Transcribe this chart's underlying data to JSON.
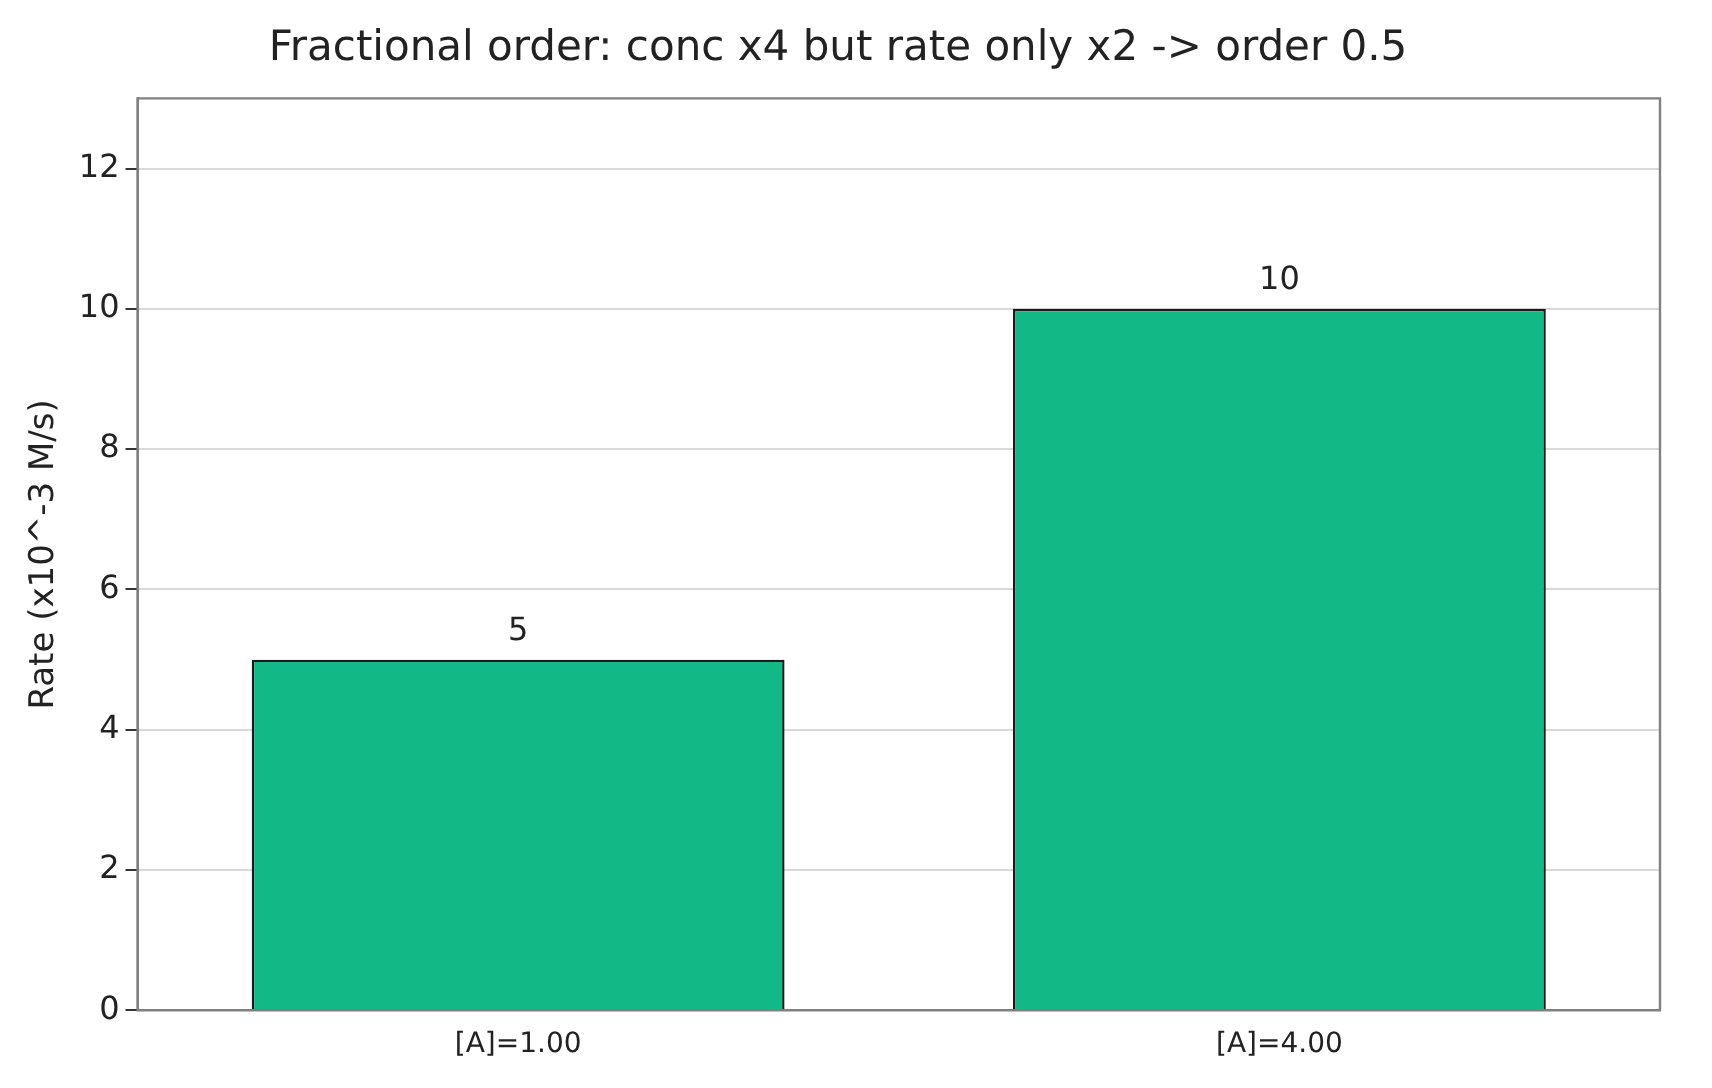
{
  "chart_data": {
    "type": "bar",
    "title": "Fractional order: conc x4 but rate only x2 -> order 0.5",
    "ylabel": "Rate (x10^-3 M/s)",
    "categories": [
      "[A]=1.00",
      "[A]=4.00"
    ],
    "values": [
      5,
      10
    ],
    "color": "#12b886",
    "ylim": [
      0,
      13
    ],
    "yticks": [
      0,
      2,
      4,
      6,
      8,
      10,
      12
    ],
    "grid": "y",
    "data_labels": true
  }
}
